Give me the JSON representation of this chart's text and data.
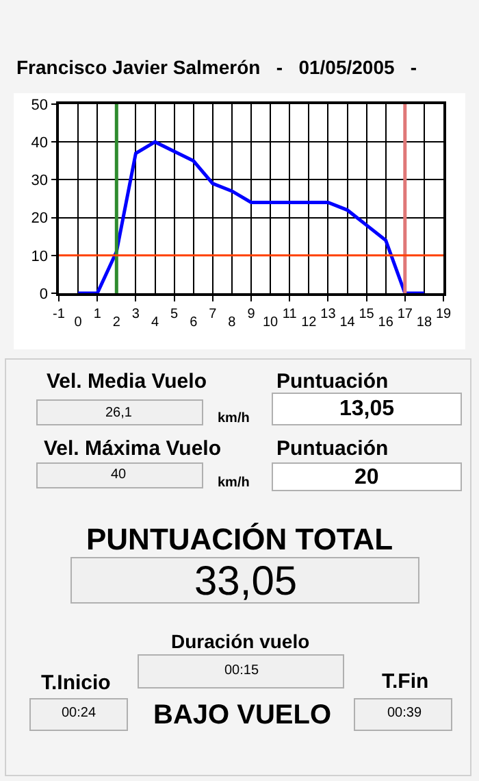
{
  "chart_data": [
    {
      "type": "line",
      "subtitle": "Francisco Javier Salmerón   -   01/05/2005   -",
      "x": [
        0,
        1,
        2,
        3,
        4,
        5,
        6,
        7,
        8,
        9,
        10,
        11,
        12,
        13,
        14,
        15,
        16,
        17,
        18
      ],
      "series": [
        {
          "color": "#0000ff",
          "values": [
            0,
            0,
            11,
            37,
            40,
            37.5,
            35,
            29,
            27,
            24,
            24,
            24,
            24,
            24,
            22,
            18,
            14,
            0,
            0
          ]
        }
      ],
      "xlim": [
        -1,
        19
      ],
      "xticks": [
        -1,
        1,
        3,
        5,
        7,
        9,
        11,
        13,
        15,
        17,
        19
      ],
      "x2lim": [
        -1,
        19
      ],
      "x2ticks": [
        0,
        2,
        4,
        6,
        8,
        10,
        12,
        14,
        16,
        18
      ],
      "ylim": [
        0,
        50
      ],
      "yticks": [
        0,
        10,
        20,
        30,
        40,
        50
      ],
      "ref_lines": [
        {
          "axis": "x",
          "value": 2,
          "color": "#2e8b2e"
        },
        {
          "axis": "x",
          "value": 17,
          "color": "#e07878"
        },
        {
          "axis": "y",
          "value": 10,
          "color": "#ff4000"
        }
      ],
      "grid": true,
      "marker": "none",
      "line_style": "solid"
    },
    {
      "type": "other",
      "annotations": [
        "Vel. Media Vuelo",
        "26,1",
        "km/h",
        "Puntuación",
        "13,05",
        "Vel. Máxima Vuelo",
        "40",
        "km/h",
        "Puntuación",
        "20",
        "PUNTUACIÓN TOTAL",
        "33,05",
        "Duración vuelo",
        "00:15",
        "T.Inicio",
        "00:24",
        "BAJO VUELO",
        "T.Fin",
        "00:39"
      ]
    }
  ]
}
